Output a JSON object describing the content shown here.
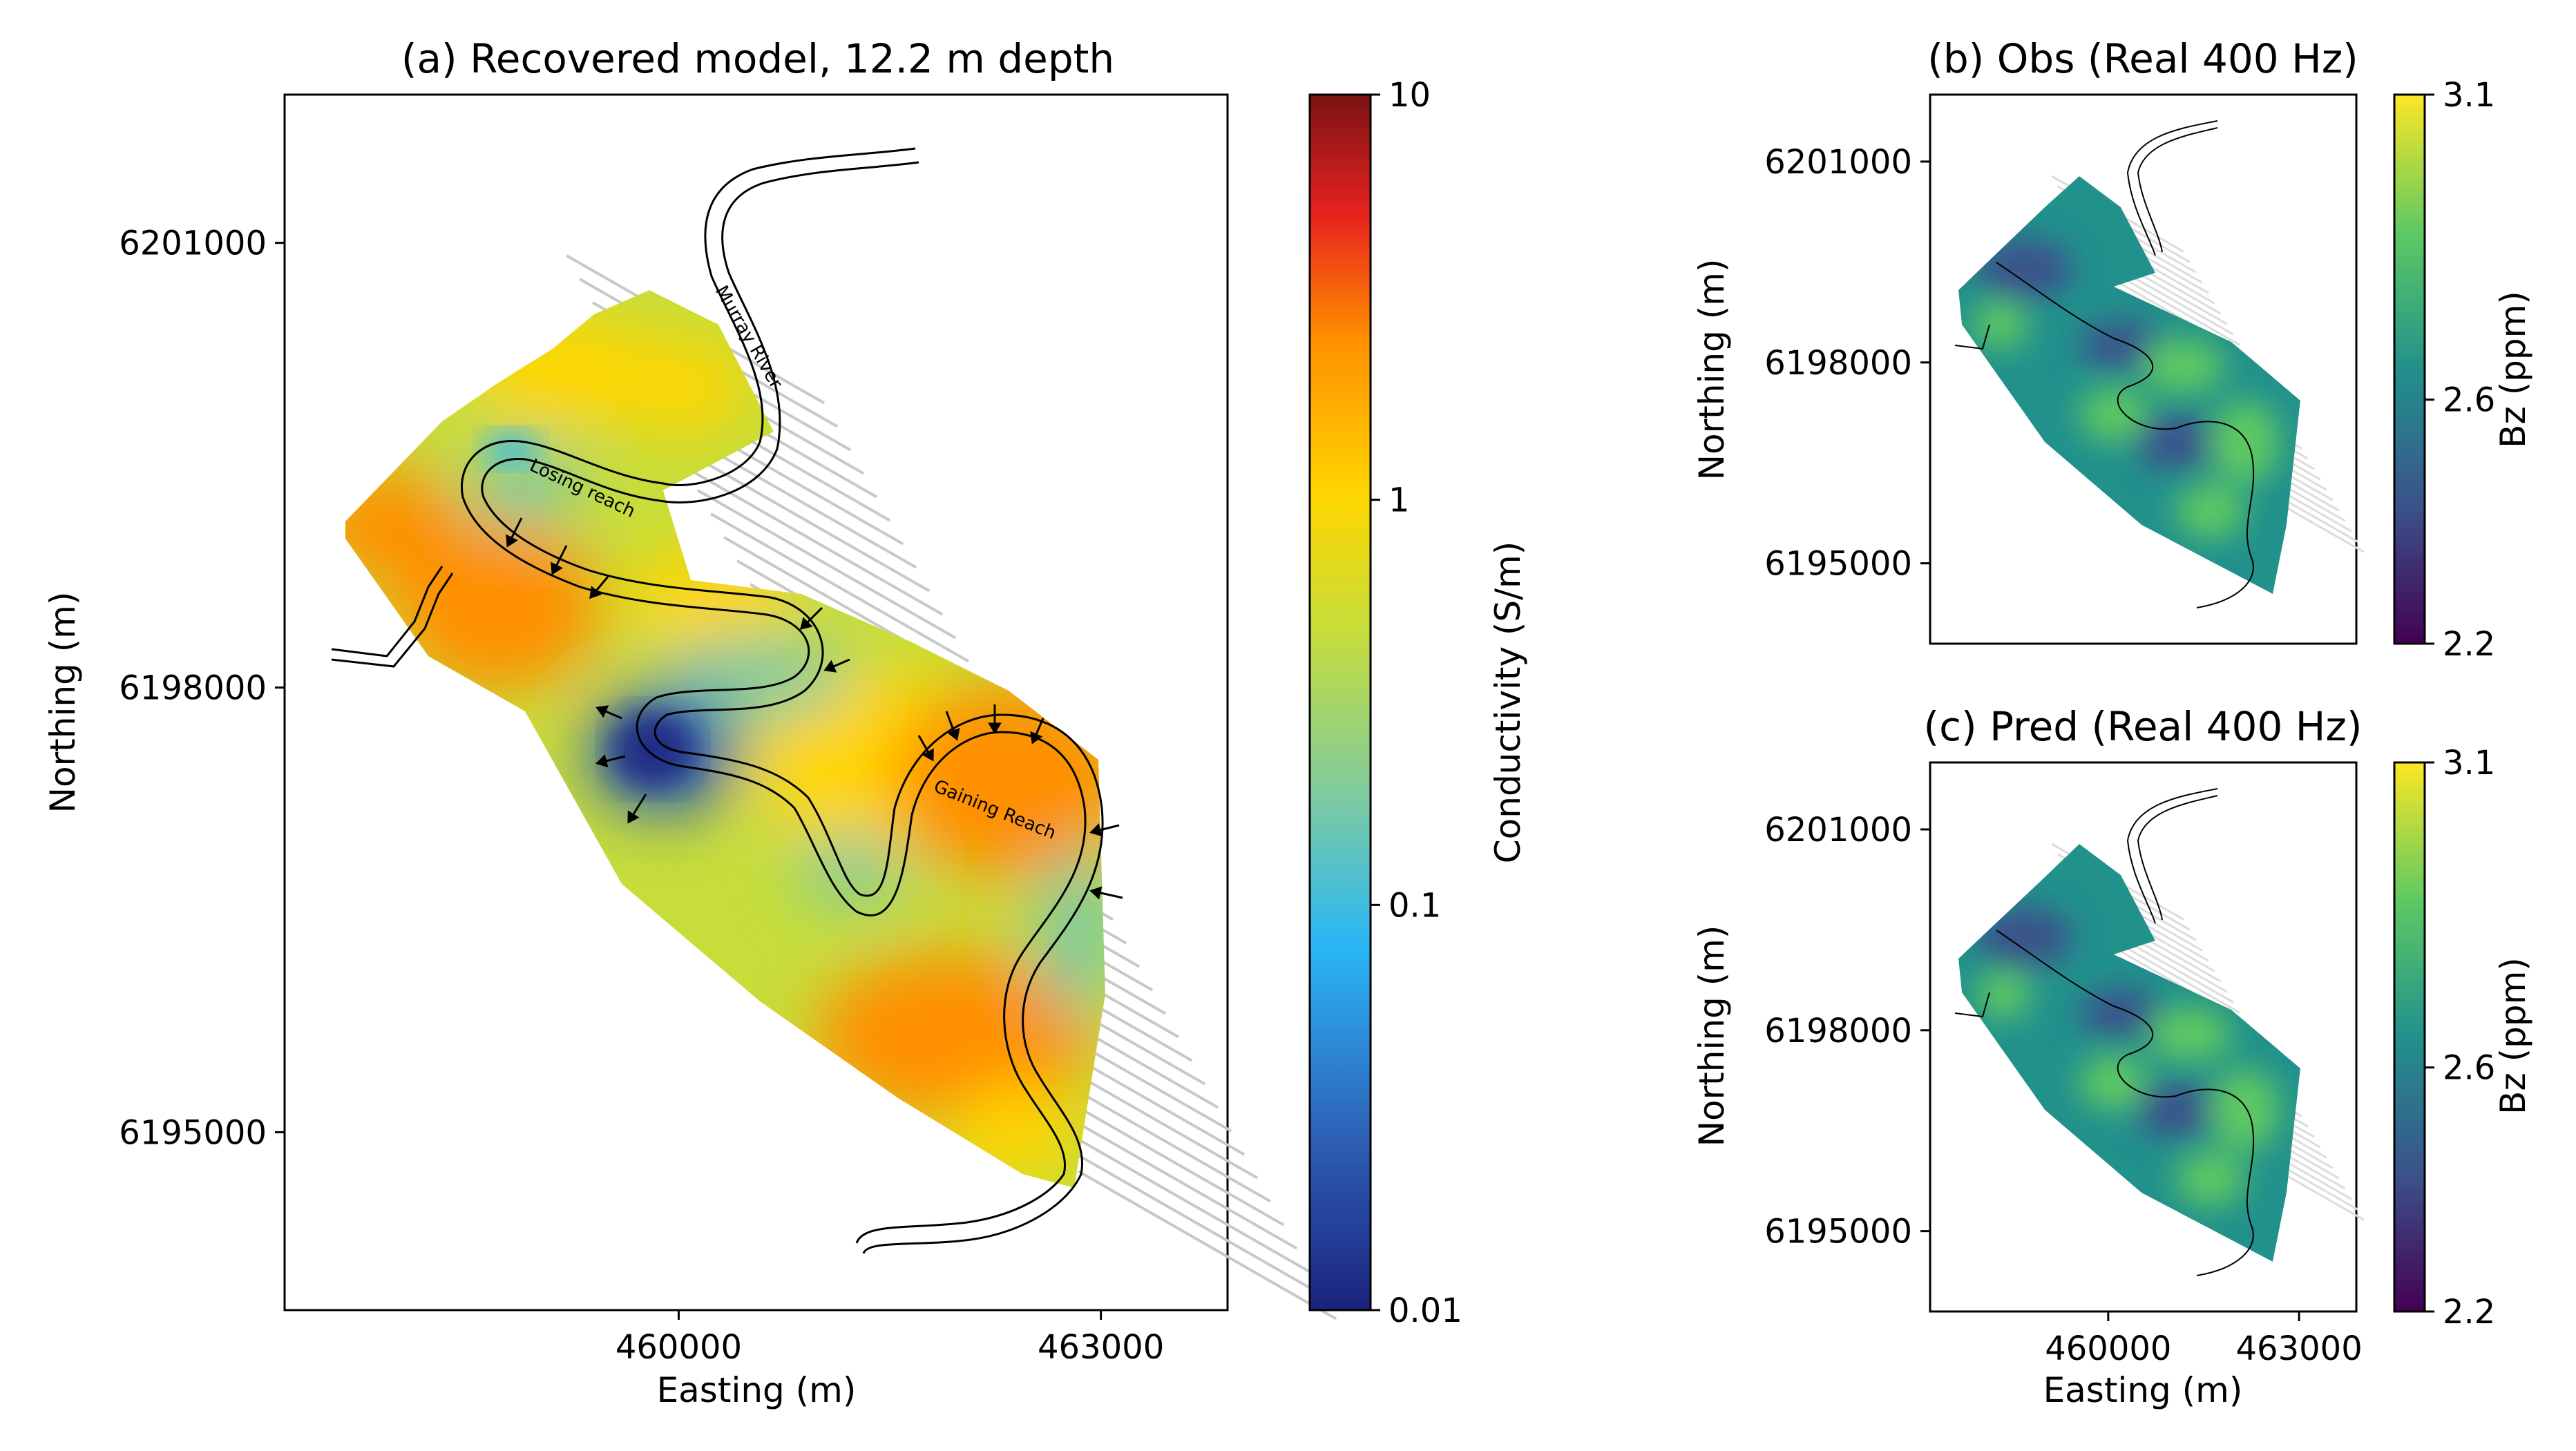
{
  "chart_data": [
    {
      "type": "heatmap",
      "title": "(a) Recovered model, 12.2 m depth",
      "xlabel": "Easting (m)",
      "ylabel": "Northing (m)",
      "xlim": [
        457200,
        463900
      ],
      "ylim": [
        6193800,
        6202000
      ],
      "xticks": [
        460000,
        463000
      ],
      "yticks": [
        6195000,
        6198000,
        6201000
      ],
      "xtick_labels": [
        "460000",
        "463000"
      ],
      "ytick_labels": [
        "6195000",
        "6198000",
        "6201000"
      ],
      "colorbar": {
        "label": "Conductivity (S/m)",
        "scale": "log",
        "range": [
          0.01,
          10
        ],
        "tick_labels": [
          "10",
          "1",
          "0.1",
          "0.01"
        ],
        "colormap": "rainbow"
      },
      "annotations": [
        "Murray River",
        "Losing reach",
        "Gaining Reach"
      ]
    },
    {
      "type": "heatmap",
      "title": "(b) Obs (Real 400 Hz)",
      "xlabel": "",
      "ylabel": "Northing (m)",
      "yticks": [
        6195000,
        6198000,
        6201000
      ],
      "ytick_labels": [
        "6195000",
        "6198000",
        "6201000"
      ],
      "colorbar": {
        "label": "Bz (ppm)",
        "scale": "linear",
        "range": [
          2.2,
          3.1
        ],
        "tick_labels": [
          "3.1",
          "2.6",
          "2.2"
        ],
        "colormap": "viridis"
      }
    },
    {
      "type": "heatmap",
      "title": "(c) Pred (Real 400 Hz)",
      "xlabel": "Easting (m)",
      "ylabel": "Northing (m)",
      "xticks": [
        460000,
        463000
      ],
      "yticks": [
        6195000,
        6198000,
        6201000
      ],
      "xtick_labels": [
        "460000",
        "463000"
      ],
      "ytick_labels": [
        "6195000",
        "6198000",
        "6201000"
      ],
      "colorbar": {
        "label": "Bz (ppm)",
        "scale": "linear",
        "range": [
          2.2,
          3.1
        ],
        "tick_labels": [
          "3.1",
          "2.6",
          "2.2"
        ],
        "colormap": "viridis"
      }
    }
  ],
  "colors": {
    "rainbow": [
      "#1a237e",
      "#2e5fb5",
      "#29b6f6",
      "#7ccba2",
      "#c7dd3a",
      "#ffd600",
      "#ff8f00",
      "#e8231e",
      "#7a1313"
    ],
    "viridis": [
      "#440154",
      "#3b528b",
      "#21918c",
      "#5ec962",
      "#fde725"
    ],
    "river": "#000000",
    "flight_lines": "#c8c8c8"
  }
}
